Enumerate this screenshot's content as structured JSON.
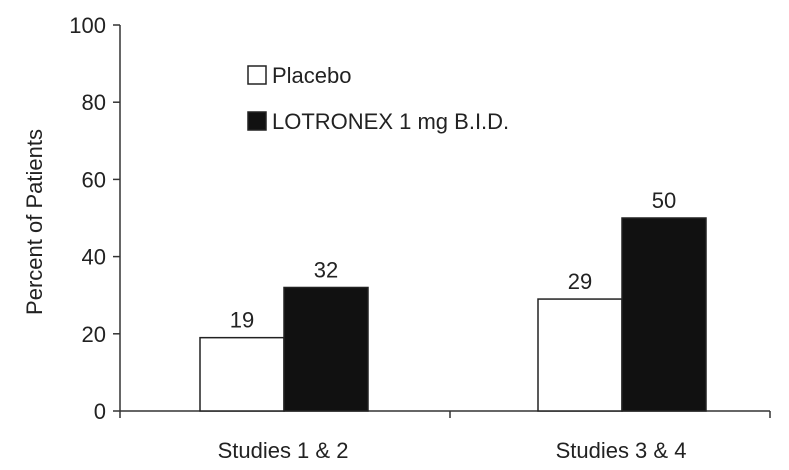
{
  "chart_data": {
    "type": "bar",
    "title": "",
    "xlabel": "",
    "ylabel": "Percent of Patients",
    "ylim": [
      0,
      100
    ],
    "yticks": [
      0,
      20,
      40,
      60,
      80,
      100
    ],
    "grid": false,
    "legend_position": "top-left",
    "categories": [
      "Studies 1 & 2",
      "Studies 3 & 4"
    ],
    "series": [
      {
        "name": "Placebo",
        "values": [
          19,
          29
        ],
        "color": "#ffffff"
      },
      {
        "name": "LOTRONEX 1 mg B.I.D.",
        "values": [
          32,
          50
        ],
        "color": "#111111"
      }
    ]
  }
}
